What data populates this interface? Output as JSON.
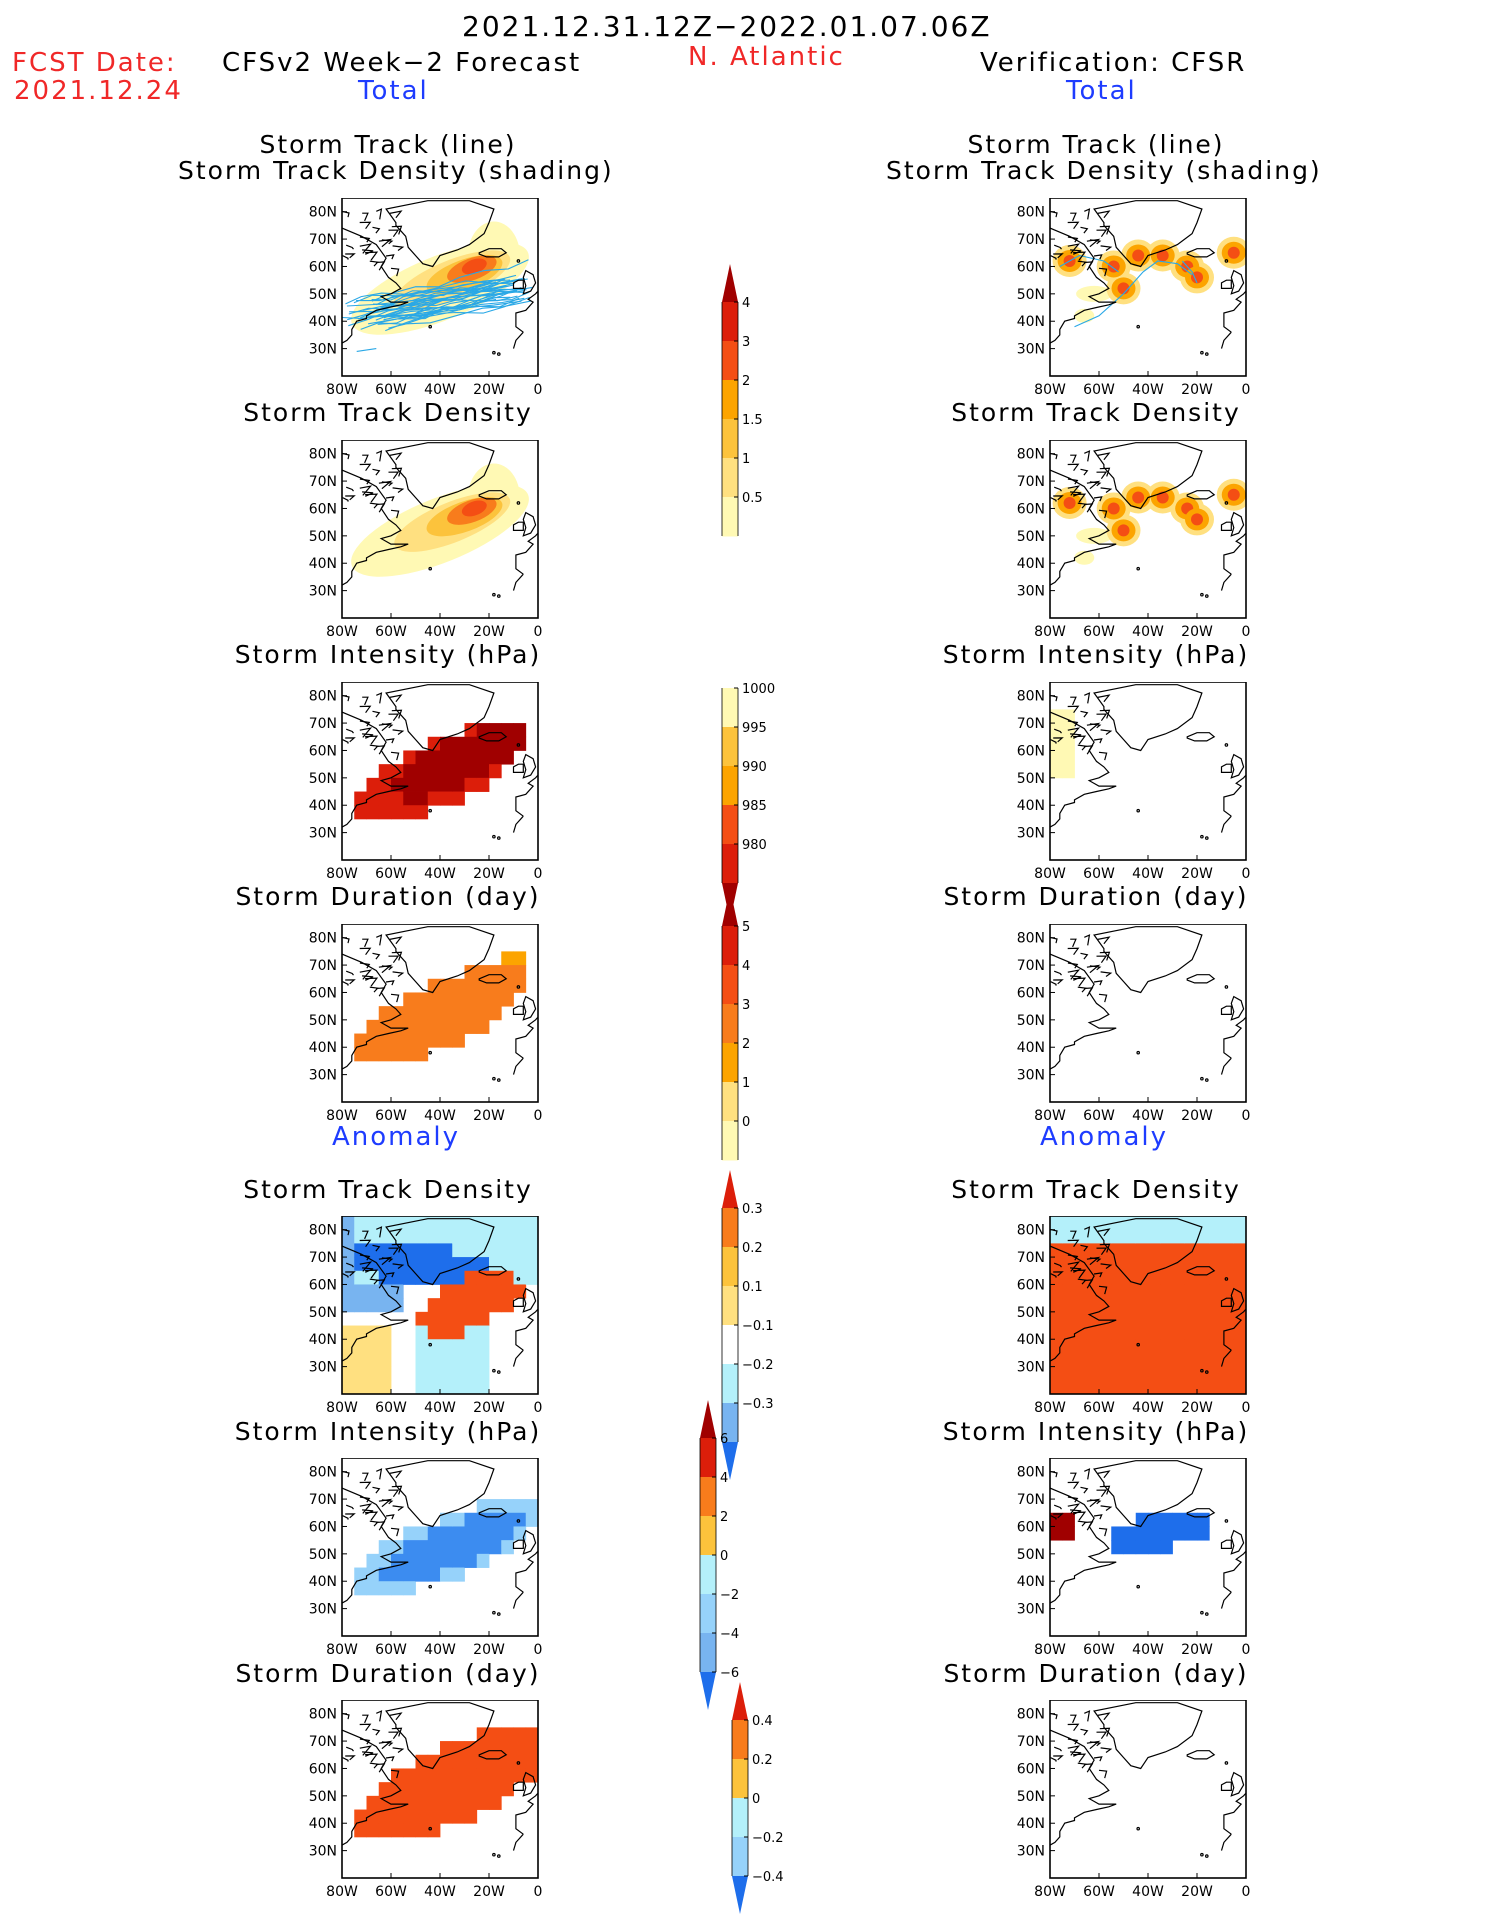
{
  "header": {
    "date_range": "2021.12.31.12Z−2022.01.07.06Z",
    "fcst_label": "FCST Date:",
    "fcst_date": "2021.12.24",
    "left_model": "CFSv2 Week−2 Forecast",
    "region": "N. Atlantic",
    "right_model": "Verification: CFSR",
    "total_label": "Total",
    "anomaly_label": "Anomaly"
  },
  "panel_titles": {
    "track_line": "Storm Track (line)",
    "track_shading": "Storm Track Density (shading)",
    "track_density": "Storm Track Density",
    "intensity": "Storm Intensity (hPa)",
    "duration": "Storm Duration (day)"
  },
  "axes": {
    "lat_ticks": [
      "80N",
      "70N",
      "60N",
      "50N",
      "40N",
      "30N"
    ],
    "lon_ticks": [
      "80W",
      "60W",
      "40W",
      "20W",
      "0"
    ]
  },
  "colorbars": {
    "density": [
      "4",
      "3",
      "2",
      "1.5",
      "1",
      "0.5"
    ],
    "intensity": [
      "1000",
      "995",
      "990",
      "985",
      "980"
    ],
    "duration": [
      "5",
      "4",
      "3",
      "2",
      "1",
      "0"
    ],
    "density_anom": [
      "0.3",
      "0.2",
      "0.1",
      "−0.1",
      "−0.2",
      "−0.3"
    ],
    "intensity_anom": [
      "6",
      "4",
      "2",
      "0",
      "−2",
      "−4",
      "−6"
    ],
    "duration_anom": [
      "0.4",
      "0.2",
      "0",
      "−0.2",
      "−0.4"
    ]
  },
  "colors": {
    "warm": [
      "#fff9b4",
      "#ffe080",
      "#fcc33c",
      "#fca400",
      "#f87c1c",
      "#f44e14",
      "#dc1e0a",
      "#a00000"
    ],
    "cool": [
      "#ffffff",
      "#b4f0fa",
      "#96d2fa",
      "#78b4f0",
      "#3c8cf0",
      "#1e6eeb",
      "#1450d2"
    ],
    "track_line": "#2aa8e6"
  }
}
